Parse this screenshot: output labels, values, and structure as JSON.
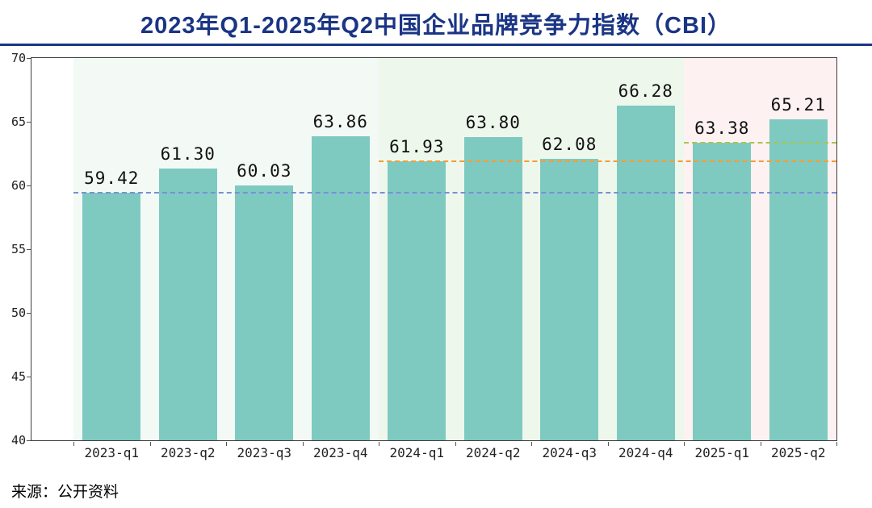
{
  "page": {
    "title": "2023年Q1-2025年Q2中国企业品牌竞争力指数（CBI）",
    "source": "来源：公开资料"
  },
  "chart_data": {
    "type": "bar",
    "title": "2023年Q1-2025年Q2中国企业品牌竞争力指数（CBI）",
    "categories": [
      "2023-q1",
      "2023-q2",
      "2023-q3",
      "2023-q4",
      "2024-q1",
      "2024-q2",
      "2024-q3",
      "2024-q4",
      "2025-q1",
      "2025-q2"
    ],
    "values": [
      59.42,
      61.3,
      60.03,
      63.86,
      61.93,
      63.8,
      62.08,
      66.28,
      63.38,
      65.21
    ],
    "value_labels": [
      "59.42",
      "61.30",
      "60.03",
      "63.86",
      "61.93",
      "63.80",
      "62.08",
      "66.28",
      "63.38",
      "65.21"
    ],
    "xlabel": "",
    "ylabel": "",
    "ylim": [
      40,
      70
    ],
    "yticks": [
      40,
      45,
      50,
      55,
      60,
      65,
      70
    ],
    "grid": false,
    "legend": false,
    "bar_color": "#7ecac0",
    "regions": [
      {
        "start_category": 0,
        "end_category": 3,
        "color": "#f3faf6"
      },
      {
        "start_category": 4,
        "end_category": 7,
        "color": "#eef7ec"
      },
      {
        "start_category": 8,
        "end_category": 9,
        "color": "#fdf1f1"
      }
    ],
    "reference_lines": [
      {
        "value": 59.42,
        "start_category": 0,
        "color": "#7b8ed8",
        "style": "dashed"
      },
      {
        "value": 61.93,
        "start_category": 4,
        "color": "#f49d37",
        "style": "dashed"
      },
      {
        "value": 63.38,
        "start_category": 8,
        "color": "#a8c454",
        "style": "dashed"
      }
    ]
  }
}
